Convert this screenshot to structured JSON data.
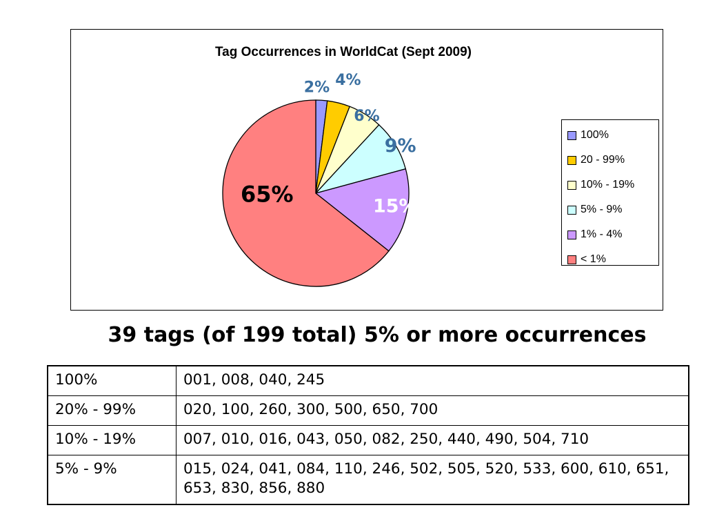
{
  "chart_data": {
    "type": "pie",
    "title": "Tag Occurrences in WorldCat (Sept 2009)",
    "slices": [
      {
        "label": "100%",
        "value": 2,
        "display": "2%",
        "color": "#9999ff",
        "label_color": "#3a6fa0"
      },
      {
        "label": "20 - 99%",
        "value": 4,
        "display": "4%",
        "color": "#ffcc00",
        "label_color": "#3a6fa0"
      },
      {
        "label": "10% - 19%",
        "value": 6,
        "display": "6%",
        "color": "#ffffcc",
        "label_color": "#3a6fa0"
      },
      {
        "label": "5% - 9%",
        "value": 9,
        "display": "9%",
        "color": "#ccffff",
        "label_color": "#3a6fa0"
      },
      {
        "label": "1% - 4%",
        "value": 15,
        "display": "15%",
        "color": "#cc99ff",
        "label_color": "#ffffff"
      },
      {
        "label": "< 1%",
        "value": 65,
        "display": "65%",
        "color": "#ff8080",
        "label_color": "#000000"
      }
    ],
    "legend_position": "right"
  },
  "subtitle": "39 tags (of 199 total) 5% or more occurrences",
  "table": {
    "rows": [
      {
        "range": "100%",
        "tags": "001, 008, 040, 245"
      },
      {
        "range": "20% - 99%",
        "tags": "020, 100, 260, 300, 500, 650, 700"
      },
      {
        "range": "10% - 19%",
        "tags": "007, 010, 016, 043, 050, 082, 250, 440, 490, 504, 710"
      },
      {
        "range": "5% - 9%",
        "tags": "015, 024, 041, 084, 110, 246, 502, 505, 520, 533, 600, 610, 651, 653, 830, 856, 880"
      }
    ]
  }
}
